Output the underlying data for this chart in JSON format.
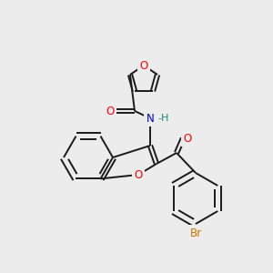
{
  "bg": "#ececec",
  "bond_color": "#1a1a1a",
  "atom_colors": {
    "O": "#ff0000",
    "N": "#0000cc",
    "Br": "#cc7700",
    "H": "#228888",
    "C": "#1a1a1a"
  },
  "lw": 1.4,
  "fs": 8.5
}
